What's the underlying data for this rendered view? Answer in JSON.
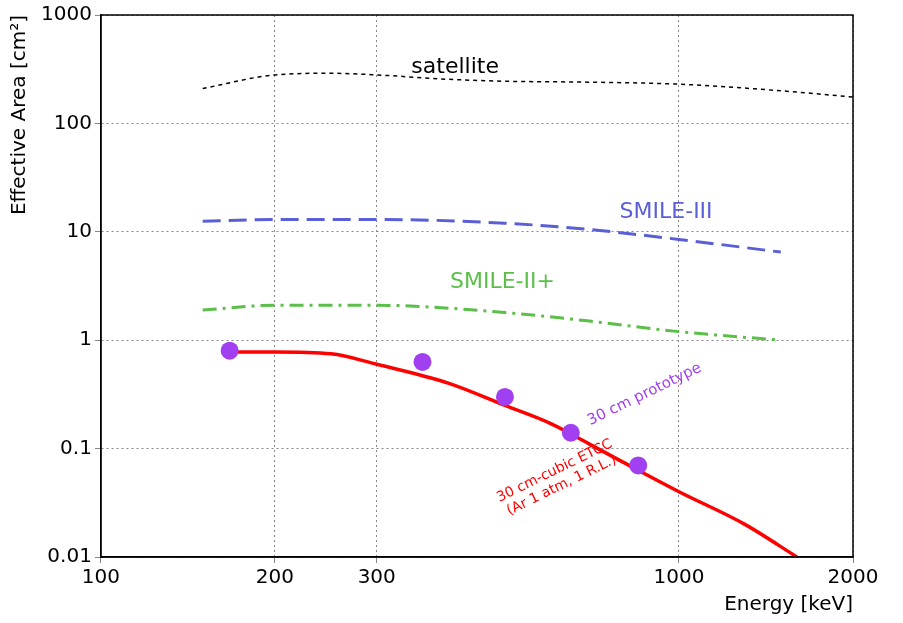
{
  "chart_data": {
    "type": "line",
    "xlabel": "Energy [keV]",
    "ylabel": "Effective Area [cm²]",
    "log": true,
    "grid": true,
    "xlim": [
      100,
      2000
    ],
    "ylim": [
      0.01,
      1000
    ],
    "xticks": [
      100,
      200,
      300,
      1000,
      2000
    ],
    "yticks": [
      0.01,
      0.1,
      1,
      10,
      100,
      1000
    ],
    "series": [
      {
        "name": "satellite",
        "color": "#000000",
        "type": "line",
        "line_style": "dashed",
        "x": [
          150,
          200,
          250,
          300,
          400,
          500,
          700,
          1000,
          1500,
          2000
        ],
        "values": [
          210,
          280,
          290,
          280,
          255,
          245,
          240,
          230,
          200,
          175
        ]
      },
      {
        "name": "SMILE-III",
        "color": "#5a5fd6",
        "type": "line",
        "line_style": "long_dashed",
        "x": [
          150,
          200,
          300,
          500,
          700,
          1000,
          1500
        ],
        "values": [
          12.5,
          13,
          13,
          12,
          10.5,
          8.5,
          6.5
        ]
      },
      {
        "name": "SMILE-II+",
        "color": "#5bbf4a",
        "type": "line",
        "line_style": "dashdot",
        "x": [
          150,
          200,
          300,
          500,
          700,
          1000,
          1500
        ],
        "values": [
          1.9,
          2.1,
          2.1,
          1.8,
          1.5,
          1.2,
          1.0
        ]
      },
      {
        "name": "30 cm-cubic ETCC (Ar 1 atm, 1 R.L.)",
        "color": "#ff0000",
        "type": "line",
        "line_style": "solid",
        "x": [
          170,
          200,
          250,
          300,
          400,
          500,
          600,
          700,
          800,
          1000,
          1300,
          1600
        ],
        "values": [
          0.78,
          0.78,
          0.75,
          0.6,
          0.4,
          0.25,
          0.17,
          0.11,
          0.075,
          0.04,
          0.02,
          0.01
        ]
      },
      {
        "name": "30 cm prototype",
        "color": "#a040f0",
        "type": "scatter",
        "marker": "circle",
        "x": [
          167,
          360,
          500,
          650,
          850
        ],
        "values": [
          0.8,
          0.63,
          0.3,
          0.14,
          0.07
        ]
      }
    ]
  }
}
